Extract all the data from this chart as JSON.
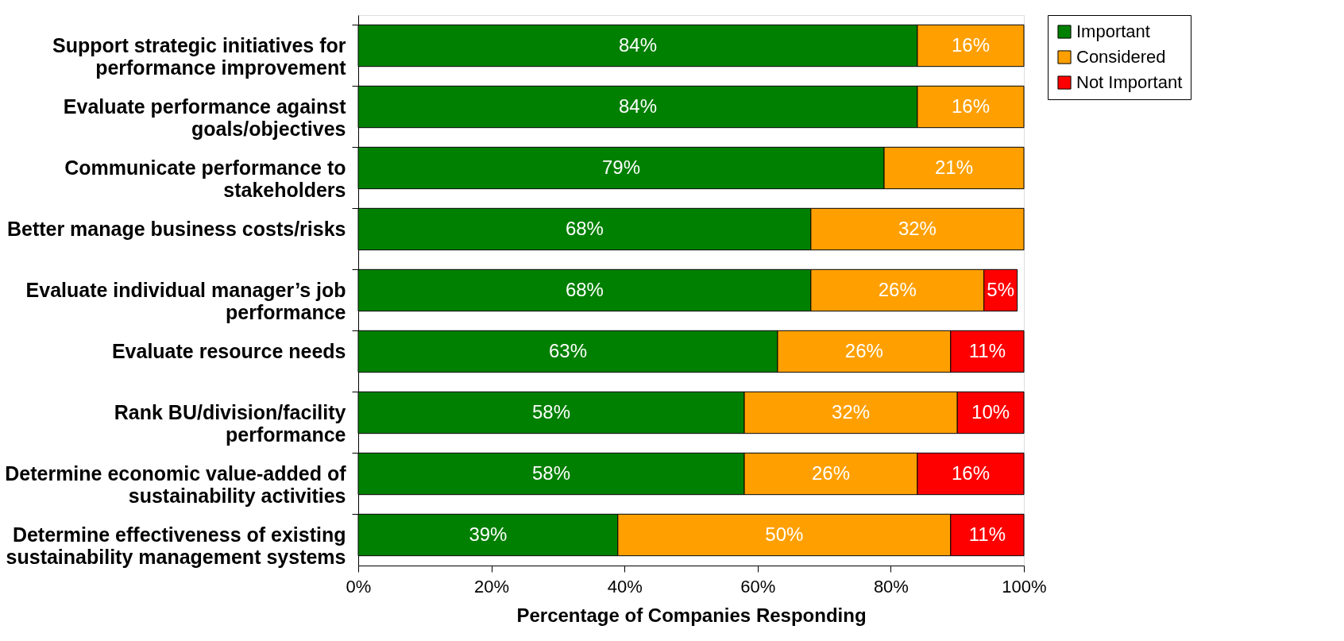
{
  "chart_data": {
    "type": "bar",
    "orientation": "horizontal",
    "stacked": true,
    "xlabel": "Percentage of Companies Responding",
    "categories": [
      "Support strategic initiatives for\nperformance improvement",
      "Evaluate performance against\ngoals/objectives",
      "Communicate performance to\nstakeholders",
      "Better manage business costs/risks",
      "Evaluate individual manager’s job\nperformance",
      "Evaluate resource needs",
      "Rank BU/division/facility\nperformance",
      "Determine economic value-added of\nsustainability activities",
      "Determine effectiveness of existing\nsustainability management systems"
    ],
    "series": [
      {
        "name": "Important",
        "color": "#008000",
        "values": [
          84,
          84,
          79,
          68,
          68,
          63,
          58,
          58,
          39
        ],
        "value_labels": [
          "84%",
          "84%",
          "79%",
          "68%",
          "68%",
          "63%",
          "58%",
          "58%",
          "39%"
        ]
      },
      {
        "name": "Considered",
        "color": "#ffa000",
        "values": [
          16,
          16,
          21,
          32,
          26,
          26,
          32,
          26,
          50
        ],
        "value_labels": [
          "16%",
          "16%",
          "21%",
          "32%",
          "26%",
          "26%",
          "32%",
          "26%",
          "50%"
        ]
      },
      {
        "name": "Not Important",
        "color": "#ff0000",
        "values": [
          null,
          null,
          null,
          null,
          5,
          11,
          10,
          16,
          11
        ],
        "value_labels": [
          null,
          null,
          null,
          null,
          "5%",
          "11%",
          "10%",
          "16%",
          "11%"
        ]
      }
    ],
    "xlim": [
      0,
      100
    ],
    "xticks": [
      {
        "value": 0,
        "label": "0%"
      },
      {
        "value": 20,
        "label": "20%"
      },
      {
        "value": 40,
        "label": "40%"
      },
      {
        "value": 60,
        "label": "60%"
      },
      {
        "value": 80,
        "label": "80%"
      },
      {
        "value": 100,
        "label": "100%"
      }
    ],
    "grid": false,
    "legend": "top right"
  }
}
